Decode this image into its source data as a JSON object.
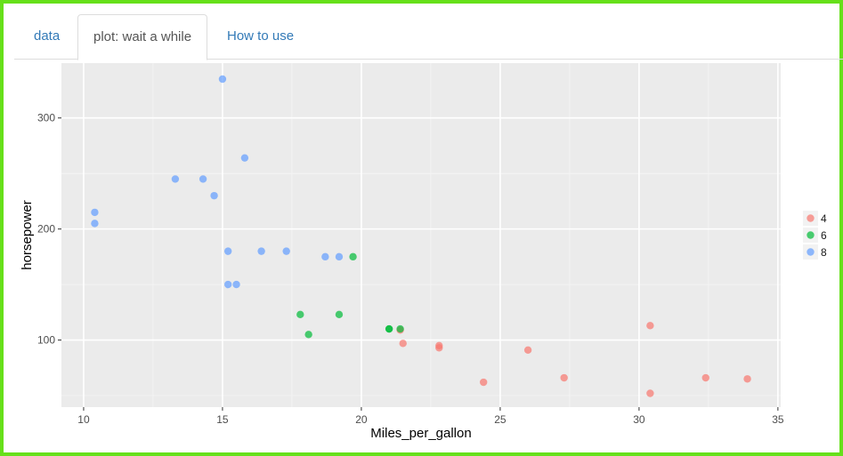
{
  "tabs": [
    {
      "label": "data"
    },
    {
      "label": "plot: wait a while"
    },
    {
      "label": "How to use"
    }
  ],
  "active_tab": 1,
  "chart_data": {
    "type": "scatter",
    "xlabel": "Miles_per_gallon",
    "ylabel": "horsepower",
    "xlim": [
      9.2,
      35.1
    ],
    "ylim": [
      39.6,
      349.4
    ],
    "x_ticks": [
      10,
      15,
      20,
      25,
      30,
      35
    ],
    "y_ticks": [
      100,
      200,
      300
    ],
    "grid": true,
    "background": "#ebebeb",
    "legend": {
      "position": "right",
      "title": ""
    },
    "series": [
      {
        "name": "4",
        "color": "#f8766d",
        "points": [
          [
            22.8,
            93
          ],
          [
            24.4,
            62
          ],
          [
            22.8,
            95
          ],
          [
            32.4,
            66
          ],
          [
            30.4,
            52
          ],
          [
            33.9,
            65
          ],
          [
            21.5,
            97
          ],
          [
            27.3,
            66
          ],
          [
            26.0,
            91
          ],
          [
            30.4,
            113
          ],
          [
            21.4,
            109
          ]
        ]
      },
      {
        "name": "6",
        "color": "#00ba38",
        "points": [
          [
            21.0,
            110
          ],
          [
            21.0,
            110
          ],
          [
            21.4,
            110
          ],
          [
            18.1,
            105
          ],
          [
            19.2,
            123
          ],
          [
            17.8,
            123
          ],
          [
            19.7,
            175
          ]
        ]
      },
      {
        "name": "8",
        "color": "#619cff",
        "points": [
          [
            18.7,
            175
          ],
          [
            14.3,
            245
          ],
          [
            16.4,
            180
          ],
          [
            17.3,
            180
          ],
          [
            15.2,
            180
          ],
          [
            10.4,
            205
          ],
          [
            10.4,
            215
          ],
          [
            14.7,
            230
          ],
          [
            15.5,
            150
          ],
          [
            15.2,
            150
          ],
          [
            13.3,
            245
          ],
          [
            19.2,
            175
          ],
          [
            15.8,
            264
          ],
          [
            15.0,
            335
          ]
        ]
      }
    ]
  }
}
